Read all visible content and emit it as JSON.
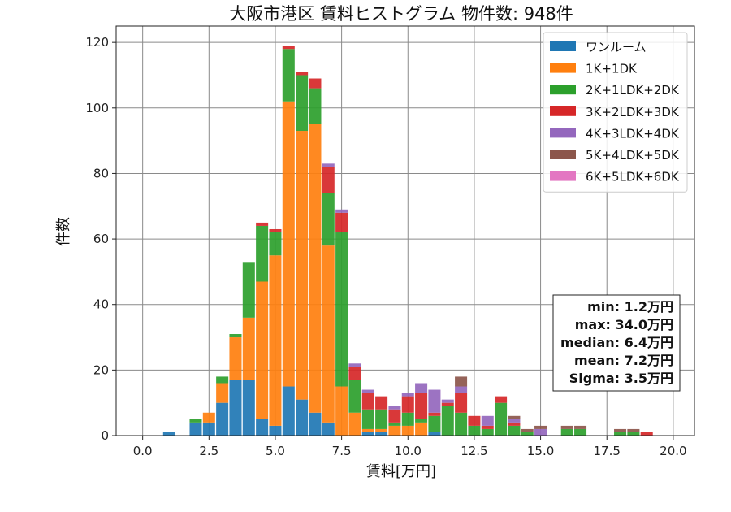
{
  "chart_data": {
    "type": "bar",
    "stacked": true,
    "title": "大阪市港区 賃料ヒストグラム  物件数: 948件",
    "xlabel": "賃料[万円]",
    "ylabel": "件数",
    "xlim": [
      -1.0,
      20.8
    ],
    "ylim": [
      0,
      125
    ],
    "x_ticks": [
      0.0,
      2.5,
      5.0,
      7.5,
      10.0,
      12.5,
      15.0,
      17.5,
      20.0
    ],
    "x_tick_labels": [
      "0.0",
      "2.5",
      "5.0",
      "7.5",
      "10.0",
      "12.5",
      "15.0",
      "17.5",
      "20.0"
    ],
    "y_ticks": [
      0,
      20,
      40,
      60,
      80,
      100,
      120
    ],
    "y_tick_labels": [
      "0",
      "20",
      "40",
      "60",
      "80",
      "100",
      "120"
    ],
    "grid": true,
    "legend_position": "top-right",
    "bin_width": 0.5,
    "x": [
      1.0,
      2.0,
      2.5,
      3.0,
      3.5,
      4.0,
      4.5,
      5.0,
      5.5,
      6.0,
      6.5,
      7.0,
      7.5,
      8.0,
      8.5,
      9.0,
      9.5,
      10.0,
      10.5,
      11.0,
      11.5,
      12.0,
      12.5,
      13.0,
      13.5,
      14.0,
      14.5,
      15.0,
      15.5,
      16.0,
      16.5,
      17.0,
      17.5,
      18.0,
      18.5,
      19.0,
      19.5
    ],
    "series": [
      {
        "name": "ワンルーム",
        "color": "#1f77b4",
        "values": [
          1,
          4,
          4,
          10,
          17,
          17,
          5,
          3,
          15,
          11,
          7,
          4,
          0,
          0,
          1,
          1,
          0,
          0,
          0,
          1,
          0,
          0,
          0,
          0,
          0,
          0,
          0,
          0,
          0,
          0,
          0,
          0,
          0,
          0,
          0,
          0,
          0
        ]
      },
      {
        "name": "1K+1DK",
        "color": "#ff7f0e",
        "values": [
          0,
          0,
          3,
          6,
          13,
          19,
          42,
          52,
          87,
          82,
          88,
          54,
          15,
          7,
          1,
          1,
          3,
          3,
          4,
          0,
          0,
          0,
          0,
          0,
          0,
          0,
          0,
          0,
          0,
          0,
          0,
          0,
          0,
          0,
          0,
          0,
          0
        ]
      },
      {
        "name": "2K+1LDK+2DK",
        "color": "#2ca02c",
        "values": [
          0,
          1,
          0,
          2,
          1,
          17,
          17,
          7,
          16,
          17,
          11,
          16,
          47,
          10,
          6,
          6,
          1,
          4,
          1,
          5,
          9,
          7,
          3,
          2,
          10,
          3,
          1,
          0,
          0,
          2,
          2,
          0,
          0,
          1,
          1,
          0,
          0
        ]
      },
      {
        "name": "3K+2LDK+3DK",
        "color": "#d62728",
        "values": [
          0,
          0,
          0,
          0,
          0,
          0,
          1,
          1,
          1,
          1,
          3,
          8,
          6,
          4,
          5,
          4,
          4,
          5,
          8,
          1,
          1,
          6,
          3,
          1,
          2,
          1,
          0,
          0,
          0,
          0,
          0,
          0,
          0,
          0,
          0,
          1,
          0
        ]
      },
      {
        "name": "4K+3LDK+4DK",
        "color": "#9467bd",
        "values": [
          0,
          0,
          0,
          0,
          0,
          0,
          0,
          0,
          0,
          0,
          0,
          1,
          1,
          1,
          1,
          0,
          1,
          1,
          3,
          7,
          1,
          2,
          0,
          3,
          0,
          1,
          0,
          2,
          0,
          0,
          0,
          0,
          0,
          0,
          0,
          0,
          0
        ]
      },
      {
        "name": "5K+4LDK+5DK",
        "color": "#8c564b",
        "values": [
          0,
          0,
          0,
          0,
          0,
          0,
          0,
          0,
          0,
          0,
          0,
          0,
          0,
          0,
          0,
          0,
          0,
          0,
          0,
          0,
          0,
          3,
          0,
          0,
          0,
          1,
          1,
          1,
          0,
          1,
          1,
          0,
          0,
          1,
          1,
          0,
          0
        ]
      },
      {
        "name": "6K+5LDK+6DK",
        "color": "#e377c2",
        "values": [
          0,
          0,
          0,
          0,
          0,
          0,
          0,
          0,
          0,
          0,
          0,
          0,
          0,
          0,
          0,
          0,
          0,
          0,
          0,
          0,
          0,
          0,
          0,
          0,
          0,
          0,
          0,
          0,
          0,
          0,
          0,
          0,
          0,
          0,
          0,
          0,
          0
        ]
      }
    ],
    "stats_box": {
      "position": "bottom-right",
      "lines": [
        "min: 1.2万円",
        "max: 34.0万円",
        "median: 6.4万円",
        "mean: 7.2万円",
        "Sigma: 3.5万円"
      ]
    }
  }
}
